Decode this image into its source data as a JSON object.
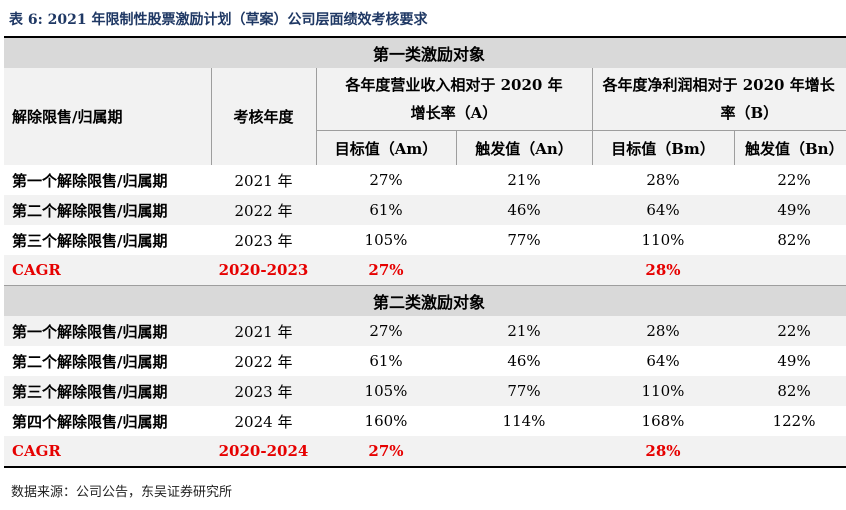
{
  "title": "表 6:  2021 年限制性股票激励计划（草案）公司层面绩效考核要求",
  "group1_title": "第一类激励对象",
  "group2_title": "第二类激励对象",
  "headers": {
    "period": "解除限售/归属期",
    "year": "考核年度",
    "revenue_line1": "各年度营业收入相对于 2020 年",
    "revenue_line2": "增长率（A）",
    "profit_line1": "各年度净利润相对于 2020 年增长",
    "profit_line2": "率（B）",
    "am": "目标值（Am）",
    "an": "触发值（An）",
    "bm": "目标值（Bm）",
    "bn": "触发值（Bn）"
  },
  "group1_rows": [
    {
      "period": "第一个解除限售/归属期",
      "year": "2021 年",
      "am": "27%",
      "an": "21%",
      "bm": "28%",
      "bn": "22%"
    },
    {
      "period": "第二个解除限售/归属期",
      "year": "2022 年",
      "am": "61%",
      "an": "46%",
      "bm": "64%",
      "bn": "49%"
    },
    {
      "period": "第三个解除限售/归属期",
      "year": "2023 年",
      "am": "105%",
      "an": "77%",
      "bm": "110%",
      "bn": "82%"
    }
  ],
  "group1_cagr": {
    "label": "CAGR",
    "years": "2020-2023",
    "am": "27%",
    "bm": "28%"
  },
  "group2_rows": [
    {
      "period": "第一个解除限售/归属期",
      "year": "2021 年",
      "am": "27%",
      "an": "21%",
      "bm": "28%",
      "bn": "22%"
    },
    {
      "period": "第二个解除限售/归属期",
      "year": "2022 年",
      "am": "61%",
      "an": "46%",
      "bm": "64%",
      "bn": "49%"
    },
    {
      "period": "第三个解除限售/归属期",
      "year": "2023 年",
      "am": "105%",
      "an": "77%",
      "bm": "110%",
      "bn": "82%"
    },
    {
      "period": "第四个解除限售/归属期",
      "year": "2024 年",
      "am": "160%",
      "an": "114%",
      "bm": "168%",
      "bn": "122%"
    }
  ],
  "group2_cagr": {
    "label": "CAGR",
    "years": "2020-2024",
    "am": "27%",
    "bm": "28%"
  },
  "source": "数据来源：公司公告，东吴证券研究所",
  "colors": {
    "accent_red": "#e60000",
    "title_blue": "#1f3864",
    "group_header_bg": "#d9d9d9",
    "stripe_bg": "#f2f2f2"
  }
}
